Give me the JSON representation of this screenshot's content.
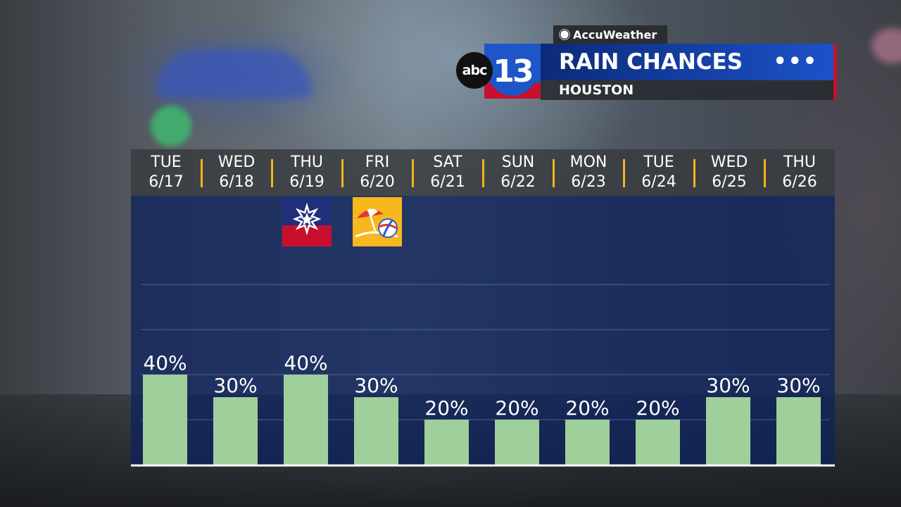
{
  "brand": {
    "partner": "AccuWeather",
    "network": "abc",
    "channel": "13"
  },
  "title": "RAIN CHANCES",
  "location": "HOUSTON",
  "colors": {
    "bar": "#9fcf9b",
    "panel": "#0e225c",
    "separator": "#f2b419",
    "title_bar": "#1c52c9"
  },
  "days": [
    {
      "dow": "TUE",
      "date": "6/17"
    },
    {
      "dow": "WED",
      "date": "6/18"
    },
    {
      "dow": "THU",
      "date": "6/19"
    },
    {
      "dow": "FRI",
      "date": "6/20"
    },
    {
      "dow": "SAT",
      "date": "6/21"
    },
    {
      "dow": "SUN",
      "date": "6/22"
    },
    {
      "dow": "MON",
      "date": "6/23"
    },
    {
      "dow": "TUE",
      "date": "6/24"
    },
    {
      "dow": "WED",
      "date": "6/25"
    },
    {
      "dow": "THU",
      "date": "6/26"
    }
  ],
  "icons": [
    {
      "day_index": 2,
      "name": "juneteenth-flag-icon"
    },
    {
      "day_index": 3,
      "name": "beach-umbrella-ball-icon"
    }
  ],
  "chart_data": {
    "type": "bar",
    "categories": [
      "TUE 6/17",
      "WED 6/18",
      "THU 6/19",
      "FRI 6/20",
      "SAT 6/21",
      "SUN 6/22",
      "MON 6/23",
      "TUE 6/24",
      "WED 6/25",
      "THU 6/26"
    ],
    "values": [
      40,
      30,
      40,
      30,
      20,
      20,
      20,
      20,
      30,
      30
    ],
    "labels": [
      "40%",
      "30%",
      "40%",
      "30%",
      "20%",
      "20%",
      "20%",
      "20%",
      "30%",
      "30%"
    ],
    "ylim": [
      0,
      100
    ],
    "grid": true,
    "legend": "none"
  }
}
